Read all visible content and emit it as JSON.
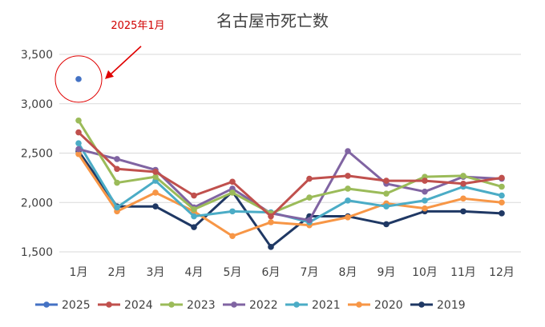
{
  "chart_data": {
    "type": "line",
    "title": "名古屋市死亡数",
    "xlabel": "",
    "ylabel": "",
    "ylim": [
      1500,
      3500
    ],
    "yticks": [
      1500,
      2000,
      2500,
      3000,
      3500
    ],
    "ytick_labels": [
      "1,500",
      "2,000",
      "2,500",
      "3,000",
      "3,500"
    ],
    "categories": [
      "1月",
      "2月",
      "3月",
      "4月",
      "5月",
      "6月",
      "7月",
      "8月",
      "9月",
      "10月",
      "11月",
      "12月"
    ],
    "grid": "horizontal",
    "legend_position": "bottom",
    "annotation": {
      "text": "2025年1月",
      "target_series": "2025",
      "target_index": 0,
      "color": "#e00000"
    },
    "series": [
      {
        "name": "2025",
        "color": "#4472c4",
        "values": [
          3250,
          null,
          null,
          null,
          null,
          null,
          null,
          null,
          null,
          null,
          null,
          null
        ]
      },
      {
        "name": "2024",
        "color": "#c0504d",
        "values": [
          2710,
          2340,
          2310,
          2070,
          2210,
          1860,
          2240,
          2270,
          2220,
          2220,
          2190,
          2250
        ]
      },
      {
        "name": "2023",
        "color": "#9bbb59",
        "values": [
          2830,
          2200,
          2260,
          1930,
          2100,
          1890,
          2050,
          2140,
          2090,
          2260,
          2270,
          2160
        ]
      },
      {
        "name": "2022",
        "color": "#8064a2",
        "values": [
          2540,
          2440,
          2330,
          1950,
          2140,
          1890,
          1820,
          2520,
          2190,
          2110,
          2260,
          2240
        ]
      },
      {
        "name": "2021",
        "color": "#4bacc6",
        "values": [
          2600,
          1950,
          2220,
          1860,
          1910,
          1900,
          1800,
          2020,
          1960,
          2020,
          2160,
          2070
        ]
      },
      {
        "name": "2020",
        "color": "#f79646",
        "values": [
          2490,
          1910,
          2100,
          1910,
          1660,
          1800,
          1770,
          1850,
          1990,
          1940,
          2040,
          2000
        ]
      },
      {
        "name": "2019",
        "color": "#1f3864",
        "values": [
          2520,
          1960,
          1960,
          1750,
          2110,
          1550,
          1860,
          1860,
          1780,
          1910,
          1910,
          1890
        ]
      }
    ]
  }
}
